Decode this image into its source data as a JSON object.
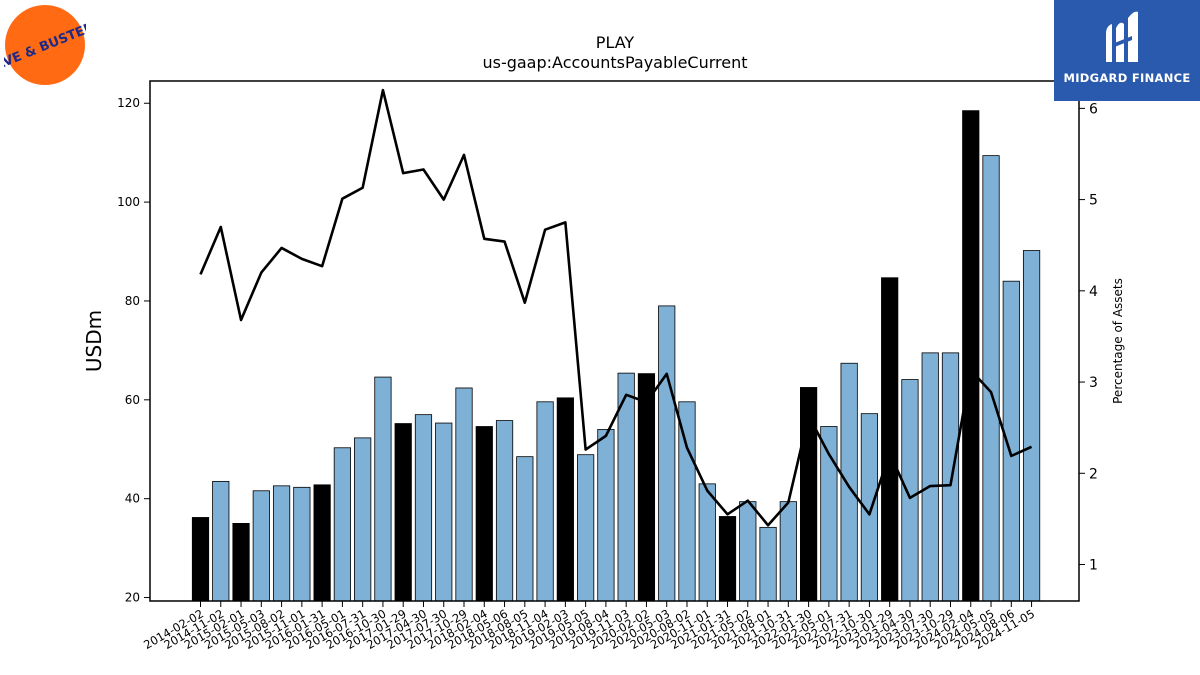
{
  "logos": {
    "left_icon": "dave-and-busters-logo",
    "left_text": "DAVE & BUSTER'S",
    "right_icon": "midgard-finance-logo",
    "right_text": "MIDGARD FINANCE"
  },
  "chart_data": {
    "type": "bar",
    "title": "PLAY",
    "subtitle": "us-gaap:AccountsPayableCurrent",
    "ylabel": "USDm",
    "y2label": "Percentage of Assets",
    "ylim": [
      19.3,
      124.5
    ],
    "y2lim": [
      0.6,
      6.3
    ],
    "yticks": [
      20,
      40,
      60,
      80,
      100,
      120
    ],
    "y2ticks": [
      1,
      2,
      3,
      4,
      5,
      6
    ],
    "categories": [
      "2014-02-02",
      "2014-11-02",
      "2015-02-01",
      "2015-05-03",
      "2015-08-02",
      "2015-11-01",
      "2016-01-31",
      "2016-05-01",
      "2016-07-31",
      "2016-10-30",
      "2017-01-29",
      "2017-04-30",
      "2017-07-30",
      "2017-10-29",
      "2018-02-04",
      "2018-05-06",
      "2018-08-05",
      "2018-11-04",
      "2019-02-03",
      "2019-05-05",
      "2019-08-04",
      "2019-11-03",
      "2020-02-02",
      "2020-05-03",
      "2020-08-02",
      "2020-11-01",
      "2021-01-31",
      "2021-05-02",
      "2021-08-01",
      "2021-10-31",
      "2022-01-30",
      "2022-05-01",
      "2022-07-31",
      "2022-10-30",
      "2023-01-29",
      "2023-04-30",
      "2023-07-30",
      "2023-10-29",
      "2024-02-04",
      "2024-05-05",
      "2024-08-06",
      "2024-11-05"
    ],
    "series": [
      {
        "kind": "bar",
        "axis": "left",
        "values": [
          36.2,
          43.5,
          35.0,
          41.6,
          42.6,
          42.3,
          42.8,
          50.3,
          52.3,
          64.6,
          55.2,
          57.0,
          55.3,
          62.4,
          54.6,
          55.8,
          48.5,
          59.6,
          60.4,
          48.9,
          54.0,
          65.4,
          65.3,
          79.0,
          59.6,
          43.0,
          36.4,
          39.4,
          34.2,
          39.4,
          62.5,
          54.6,
          67.4,
          57.2,
          84.7,
          64.1,
          69.5,
          69.5,
          118.5,
          109.4,
          84.0,
          90.2
        ],
        "highlight": [
          true,
          false,
          true,
          false,
          false,
          false,
          true,
          false,
          false,
          false,
          true,
          false,
          false,
          false,
          true,
          false,
          false,
          false,
          true,
          false,
          false,
          false,
          true,
          false,
          false,
          false,
          true,
          false,
          false,
          false,
          true,
          false,
          false,
          false,
          true,
          false,
          false,
          false,
          true,
          false,
          false,
          false
        ]
      },
      {
        "kind": "line",
        "axis": "right",
        "values": [
          4.18,
          4.7,
          3.68,
          4.2,
          4.47,
          4.35,
          4.27,
          5.01,
          5.13,
          6.2,
          5.29,
          5.33,
          5.0,
          5.49,
          4.57,
          4.54,
          3.87,
          4.67,
          4.75,
          2.26,
          2.41,
          2.86,
          2.78,
          3.09,
          2.28,
          1.81,
          1.55,
          1.7,
          1.43,
          1.68,
          2.63,
          2.21,
          1.85,
          1.55,
          2.22,
          1.73,
          1.86,
          1.87,
          3.13,
          2.89,
          2.19,
          2.29
        ]
      }
    ],
    "colors": {
      "bar": "#7fb0d5",
      "bar_highlight": "#000000",
      "line": "#000000",
      "bar_edge": "#000000"
    }
  }
}
